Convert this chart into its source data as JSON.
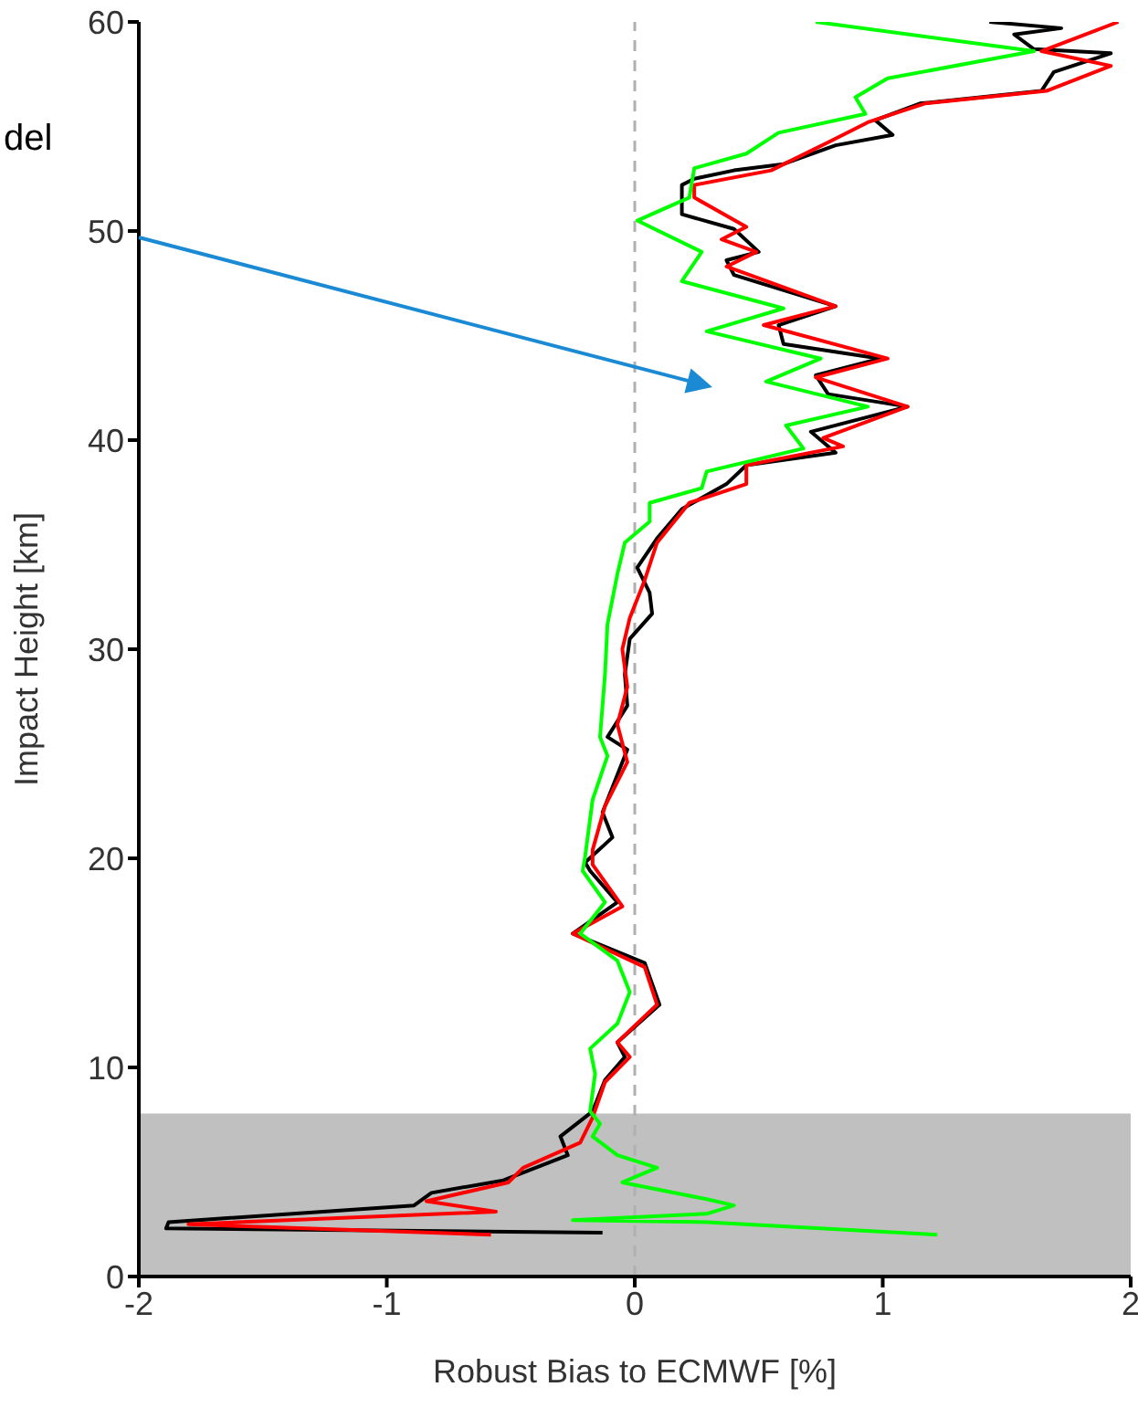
{
  "chart_data": {
    "type": "line",
    "xlabel": "Robust Bias to ECMWF [%]",
    "ylabel": "Impact Height [km]",
    "xlim": [
      -2,
      2
    ],
    "xticks": [
      -2,
      -1,
      0,
      1,
      2
    ],
    "ylim": [
      0,
      60
    ],
    "yticks": [
      0,
      10,
      20,
      30,
      40,
      50,
      60
    ],
    "annotations": [
      "del"
    ],
    "ref_lines": [
      {
        "axis": "x",
        "value": 0,
        "color": "#b0b0b0",
        "line_style": "dashed"
      }
    ],
    "bands": [
      {
        "axis": "y",
        "from": 0,
        "to": 7.8,
        "color": "#c0c0c0"
      }
    ],
    "series": [
      {
        "color": "#000000",
        "x": [
          1.43,
          1.72,
          1.53,
          1.61,
          1.92,
          1.69,
          1.64,
          1.15,
          0.97,
          1.04,
          0.81,
          0.6,
          0.4,
          0.24,
          0.19,
          0.19,
          0.4,
          0.5,
          0.37,
          0.4,
          0.81,
          0.58,
          0.6,
          0.99,
          0.73,
          0.78,
          1.1,
          0.71,
          0.81,
          0.45,
          0.37,
          0.19,
          0.09,
          0.01,
          0.06,
          0.07,
          -0.02,
          -0.04,
          -0.03,
          -0.11,
          -0.03,
          -0.13,
          -0.09,
          -0.2,
          -0.18,
          -0.07,
          -0.25,
          0.04,
          0.1,
          -0.07,
          -0.04,
          -0.12,
          -0.17,
          -0.3,
          -0.27,
          -0.53,
          -0.82,
          -0.89,
          -1.88,
          -1.89,
          -0.13
        ],
        "values": [
          60,
          59.7,
          59.4,
          58.7,
          58.5,
          57.6,
          56.7,
          56.1,
          55.3,
          54.6,
          54.1,
          53.2,
          52.9,
          52.5,
          52.2,
          50.8,
          50.1,
          49,
          48.6,
          47.9,
          46.4,
          45.5,
          44.6,
          43.9,
          43.1,
          42.2,
          41.6,
          40.4,
          39.4,
          38.8,
          37.9,
          36.7,
          35.3,
          33.9,
          32.7,
          31.7,
          30.5,
          28.8,
          27.3,
          25.8,
          25.2,
          22.2,
          21,
          19.8,
          19.4,
          17.9,
          16.4,
          15,
          13,
          11.2,
          10.5,
          9.4,
          7.9,
          6.7,
          5.8,
          4.6,
          4,
          3.4,
          2.6,
          2.3,
          2.1
        ]
      },
      {
        "color": "#ff0000",
        "x": [
          1.95,
          1.84,
          1.64,
          1.92,
          1.66,
          1.17,
          0.94,
          0.79,
          0.55,
          0.24,
          0.24,
          0.45,
          0.35,
          0.49,
          0.37,
          0.81,
          0.52,
          1.02,
          0.73,
          1.1,
          0.76,
          0.84,
          0.45,
          0.45,
          0.22,
          0.09,
          0.04,
          -0.02,
          -0.05,
          -0.03,
          -0.07,
          -0.03,
          -0.12,
          -0.17,
          -0.17,
          -0.05,
          -0.25,
          0.04,
          0.09,
          -0.07,
          -0.02,
          -0.12,
          -0.17,
          -0.22,
          -0.45,
          -0.51,
          -0.84,
          -0.56,
          -1.8,
          -0.58
        ],
        "values": [
          60,
          59.5,
          58.6,
          57.9,
          56.7,
          56.1,
          55.2,
          54.3,
          52.9,
          52.2,
          51.6,
          50.2,
          49.6,
          49,
          48.3,
          46.4,
          45.5,
          43.9,
          43,
          41.6,
          40.1,
          39.7,
          38.8,
          37.9,
          37,
          35.1,
          33.3,
          31.5,
          30,
          28.2,
          26.4,
          24.6,
          22.5,
          20.4,
          19.7,
          17.7,
          16.4,
          14.8,
          13,
          11.2,
          10.5,
          9.3,
          7.6,
          6.4,
          5.2,
          4.5,
          3.6,
          3.1,
          2.5,
          2
        ]
      },
      {
        "color": "#00ff00",
        "x": [
          0.73,
          1.61,
          1.02,
          0.89,
          0.93,
          0.58,
          0.45,
          0.24,
          0.22,
          0.01,
          0.27,
          0.19,
          0.6,
          0.29,
          0.75,
          0.53,
          0.94,
          0.61,
          0.68,
          0.29,
          0.27,
          0.06,
          0.06,
          -0.04,
          -0.07,
          -0.11,
          -0.12,
          -0.14,
          -0.11,
          -0.17,
          -0.2,
          -0.21,
          -0.12,
          -0.22,
          -0.07,
          -0.02,
          -0.07,
          -0.18,
          -0.16,
          -0.18,
          -0.14,
          -0.17,
          -0.07,
          0.09,
          -0.05,
          0.29,
          0.4,
          0.29,
          -0.25,
          0.29,
          1.22
        ],
        "values": [
          60,
          58.6,
          57.3,
          56.4,
          55.6,
          54.7,
          53.7,
          53,
          51.6,
          50.5,
          49,
          47.6,
          46.3,
          45.2,
          43.9,
          42.8,
          41.6,
          40.7,
          39.6,
          38.5,
          37.7,
          37,
          36.1,
          35.1,
          33.6,
          31.2,
          28.8,
          25.8,
          24.9,
          22.8,
          20.1,
          19.4,
          17.9,
          16.4,
          15.1,
          13.6,
          12.1,
          10.9,
          9.7,
          7.9,
          7.3,
          6.7,
          5.8,
          5.2,
          4.5,
          3.7,
          3.4,
          3,
          2.7,
          2.6,
          2
        ]
      }
    ]
  }
}
